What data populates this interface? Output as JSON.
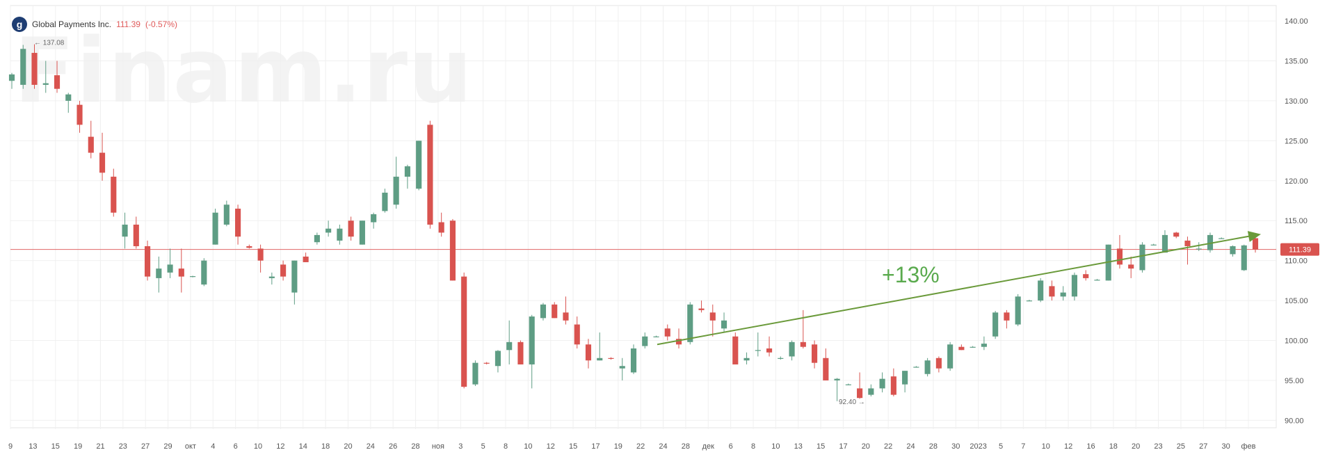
{
  "header": {
    "logo_letter": "g",
    "instrument": "Global Payments Inc.",
    "price": "111.39",
    "change": "(-0.57%)"
  },
  "watermark": "Finam.ru",
  "colors": {
    "up": "#5e9d84",
    "down": "#d9534f",
    "grid": "#f0f0f0",
    "price_line": "#e06666",
    "trend": "#6a9a3a",
    "trend_label": "#5aaa4e",
    "axis_text": "#555555"
  },
  "chart_data": {
    "type": "candlestick",
    "title": "Global Payments Inc.",
    "y_ticks": [
      90,
      95,
      100,
      105,
      110,
      115,
      120,
      125,
      130,
      135,
      140
    ],
    "y_tick_labels": [
      "90.00",
      "95.00",
      "100.00",
      "105.00",
      "110.00",
      "115.00",
      "120.00",
      "125.00",
      "130.00",
      "135.00",
      "140.00"
    ],
    "ylim": [
      88.9,
      141.4
    ],
    "x_tick_labels": [
      "9",
      "13",
      "15",
      "19",
      "21",
      "23",
      "27",
      "29",
      "окт",
      "4",
      "6",
      "10",
      "12",
      "14",
      "18",
      "20",
      "24",
      "26",
      "28",
      "ноя",
      "3",
      "5",
      "8",
      "10",
      "12",
      "15",
      "17",
      "19",
      "22",
      "24",
      "28",
      "дек",
      "6",
      "8",
      "10",
      "13",
      "15",
      "17",
      "20",
      "22",
      "24",
      "28",
      "30",
      "2023",
      "5",
      "7",
      "10",
      "12",
      "16",
      "18",
      "20",
      "23",
      "25",
      "27",
      "30",
      "фев"
    ],
    "last_price": 111.39,
    "last_price_label": "111.39",
    "max_annotation": {
      "label": "137.08",
      "value": 137.08
    },
    "min_annotation": {
      "label": "92.40",
      "value": 92.4
    },
    "trend": {
      "label": "+13%",
      "from": 99.5,
      "to": 113.3
    },
    "grid": true,
    "candles": [
      {
        "o": 132.5,
        "h": 133.5,
        "l": 131.5,
        "c": 133.3
      },
      {
        "o": 132.0,
        "h": 137.0,
        "l": 131.5,
        "c": 136.5
      },
      {
        "o": 136.0,
        "h": 137.08,
        "l": 131.5,
        "c": 132.0
      },
      {
        "o": 132.0,
        "h": 135.0,
        "l": 131.0,
        "c": 132.2
      },
      {
        "o": 133.2,
        "h": 135.0,
        "l": 131.0,
        "c": 131.5
      },
      {
        "o": 130.0,
        "h": 131.0,
        "l": 128.5,
        "c": 130.8
      },
      {
        "o": 129.5,
        "h": 130.0,
        "l": 126.0,
        "c": 127.0
      },
      {
        "o": 125.5,
        "h": 127.5,
        "l": 122.8,
        "c": 123.5
      },
      {
        "o": 123.5,
        "h": 126.0,
        "l": 120.0,
        "c": 121.0
      },
      {
        "o": 120.5,
        "h": 121.5,
        "l": 115.5,
        "c": 116.0
      },
      {
        "o": 113.0,
        "h": 116.0,
        "l": 111.5,
        "c": 114.5
      },
      {
        "o": 114.5,
        "h": 115.5,
        "l": 111.5,
        "c": 111.8
      },
      {
        "o": 111.8,
        "h": 112.5,
        "l": 107.5,
        "c": 108.0
      },
      {
        "o": 107.8,
        "h": 110.5,
        "l": 106.0,
        "c": 109.0
      },
      {
        "o": 108.5,
        "h": 111.5,
        "l": 107.8,
        "c": 109.5
      },
      {
        "o": 109.0,
        "h": 111.5,
        "l": 106.0,
        "c": 108.0
      },
      {
        "o": 108.0,
        "h": 108.1,
        "l": 107.9,
        "c": 108.05
      },
      {
        "o": 107.0,
        "h": 110.3,
        "l": 106.8,
        "c": 110.0
      },
      {
        "o": 112.0,
        "h": 116.5,
        "l": 112.0,
        "c": 116.0
      },
      {
        "o": 114.5,
        "h": 117.5,
        "l": 114.3,
        "c": 117.0
      },
      {
        "o": 116.5,
        "h": 117.0,
        "l": 112.0,
        "c": 113.0
      },
      {
        "o": 111.8,
        "h": 112.0,
        "l": 111.5,
        "c": 111.6
      },
      {
        "o": 111.5,
        "h": 112.0,
        "l": 108.5,
        "c": 110.0
      },
      {
        "o": 107.8,
        "h": 108.5,
        "l": 107.0,
        "c": 108.0
      },
      {
        "o": 109.5,
        "h": 110.0,
        "l": 107.5,
        "c": 108.0
      },
      {
        "o": 106.0,
        "h": 110.0,
        "l": 104.5,
        "c": 110.0
      },
      {
        "o": 110.5,
        "h": 111.0,
        "l": 109.8,
        "c": 109.8
      },
      {
        "o": 112.3,
        "h": 113.5,
        "l": 112.0,
        "c": 113.2
      },
      {
        "o": 113.5,
        "h": 115.0,
        "l": 113.0,
        "c": 114.0
      },
      {
        "o": 112.5,
        "h": 114.5,
        "l": 112.0,
        "c": 114.0
      },
      {
        "o": 115.0,
        "h": 115.5,
        "l": 112.5,
        "c": 113.0
      },
      {
        "o": 112.0,
        "h": 115.0,
        "l": 112.0,
        "c": 115.0
      },
      {
        "o": 114.8,
        "h": 116.0,
        "l": 114.0,
        "c": 115.8
      },
      {
        "o": 116.2,
        "h": 119.0,
        "l": 116.0,
        "c": 118.5
      },
      {
        "o": 117.0,
        "h": 123.0,
        "l": 116.5,
        "c": 120.5
      },
      {
        "o": 120.5,
        "h": 122.0,
        "l": 119.0,
        "c": 121.8
      },
      {
        "o": 119.0,
        "h": 125.0,
        "l": 118.8,
        "c": 125.0
      },
      {
        "o": 127.0,
        "h": 127.5,
        "l": 114.0,
        "c": 114.5
      },
      {
        "o": 114.8,
        "h": 116.0,
        "l": 113.0,
        "c": 113.5
      },
      {
        "o": 115.0,
        "h": 115.2,
        "l": 107.5,
        "c": 107.5
      },
      {
        "o": 108.0,
        "h": 108.5,
        "l": 94.0,
        "c": 94.2
      },
      {
        "o": 94.5,
        "h": 97.5,
        "l": 94.3,
        "c": 97.2
      },
      {
        "o": 97.2,
        "h": 97.3,
        "l": 97.0,
        "c": 97.1
      },
      {
        "o": 96.8,
        "h": 98.8,
        "l": 96.0,
        "c": 98.7
      },
      {
        "o": 98.8,
        "h": 102.5,
        "l": 97.0,
        "c": 99.8
      },
      {
        "o": 99.8,
        "h": 100.0,
        "l": 97.0,
        "c": 97.0
      },
      {
        "o": 97.0,
        "h": 103.2,
        "l": 94.0,
        "c": 103.0
      },
      {
        "o": 102.8,
        "h": 104.7,
        "l": 102.5,
        "c": 104.5
      },
      {
        "o": 104.5,
        "h": 104.8,
        "l": 102.8,
        "c": 102.8
      },
      {
        "o": 103.5,
        "h": 105.5,
        "l": 102.0,
        "c": 102.5
      },
      {
        "o": 102.0,
        "h": 103.0,
        "l": 99.0,
        "c": 99.5
      },
      {
        "o": 99.5,
        "h": 100.2,
        "l": 96.5,
        "c": 97.5
      },
      {
        "o": 97.5,
        "h": 101.0,
        "l": 97.5,
        "c": 97.8
      },
      {
        "o": 97.8,
        "h": 97.9,
        "l": 97.6,
        "c": 97.7
      },
      {
        "o": 96.5,
        "h": 97.8,
        "l": 95.0,
        "c": 96.8
      },
      {
        "o": 96.0,
        "h": 99.5,
        "l": 95.8,
        "c": 99.0
      },
      {
        "o": 99.3,
        "h": 101.0,
        "l": 99.0,
        "c": 100.5
      },
      {
        "o": 100.5,
        "h": 100.6,
        "l": 100.4,
        "c": 100.5
      },
      {
        "o": 101.5,
        "h": 102.0,
        "l": 100.0,
        "c": 100.5
      },
      {
        "o": 100.2,
        "h": 101.5,
        "l": 99.0,
        "c": 99.5
      },
      {
        "o": 99.8,
        "h": 104.8,
        "l": 99.5,
        "c": 104.5
      },
      {
        "o": 104.0,
        "h": 105.0,
        "l": 103.5,
        "c": 103.8
      },
      {
        "o": 103.5,
        "h": 104.5,
        "l": 100.5,
        "c": 102.5
      },
      {
        "o": 101.5,
        "h": 103.5,
        "l": 101.0,
        "c": 102.5
      },
      {
        "o": 100.5,
        "h": 101.0,
        "l": 97.0,
        "c": 97.0
      },
      {
        "o": 97.5,
        "h": 98.5,
        "l": 97.0,
        "c": 97.8
      },
      {
        "o": 98.8,
        "h": 101.0,
        "l": 98.0,
        "c": 98.8
      },
      {
        "o": 99.0,
        "h": 100.5,
        "l": 98.0,
        "c": 98.5
      },
      {
        "o": 97.8,
        "h": 98.0,
        "l": 97.6,
        "c": 97.8
      },
      {
        "o": 98.0,
        "h": 100.0,
        "l": 97.5,
        "c": 99.8
      },
      {
        "o": 99.8,
        "h": 103.8,
        "l": 99.0,
        "c": 99.2
      },
      {
        "o": 99.5,
        "h": 100.0,
        "l": 96.5,
        "c": 97.2
      },
      {
        "o": 97.8,
        "h": 99.0,
        "l": 95.0,
        "c": 95.0
      },
      {
        "o": 95.0,
        "h": 95.3,
        "l": 92.4,
        "c": 95.2
      },
      {
        "o": 94.5,
        "h": 94.6,
        "l": 94.4,
        "c": 94.5
      },
      {
        "o": 94.0,
        "h": 96.0,
        "l": 92.7,
        "c": 92.8
      },
      {
        "o": 93.2,
        "h": 94.5,
        "l": 93.0,
        "c": 94.0
      },
      {
        "o": 94.0,
        "h": 96.0,
        "l": 93.5,
        "c": 95.2
      },
      {
        "o": 95.5,
        "h": 96.5,
        "l": 93.0,
        "c": 93.2
      },
      {
        "o": 94.5,
        "h": 96.2,
        "l": 93.5,
        "c": 96.2
      },
      {
        "o": 96.7,
        "h": 96.8,
        "l": 96.6,
        "c": 96.7
      },
      {
        "o": 95.8,
        "h": 97.8,
        "l": 95.5,
        "c": 97.5
      },
      {
        "o": 97.8,
        "h": 98.0,
        "l": 96.0,
        "c": 96.5
      },
      {
        "o": 96.5,
        "h": 99.8,
        "l": 96.2,
        "c": 99.5
      },
      {
        "o": 99.2,
        "h": 99.5,
        "l": 98.8,
        "c": 98.8
      },
      {
        "o": 99.2,
        "h": 99.3,
        "l": 99.1,
        "c": 99.2
      },
      {
        "o": 99.2,
        "h": 100.5,
        "l": 98.8,
        "c": 99.6
      },
      {
        "o": 100.5,
        "h": 103.7,
        "l": 100.2,
        "c": 103.5
      },
      {
        "o": 103.5,
        "h": 103.8,
        "l": 101.5,
        "c": 102.5
      },
      {
        "o": 102.0,
        "h": 105.8,
        "l": 101.8,
        "c": 105.5
      },
      {
        "o": 105.0,
        "h": 105.1,
        "l": 104.9,
        "c": 105.0
      },
      {
        "o": 105.0,
        "h": 107.8,
        "l": 104.8,
        "c": 107.5
      },
      {
        "o": 106.8,
        "h": 107.5,
        "l": 105.0,
        "c": 105.5
      },
      {
        "o": 105.5,
        "h": 106.8,
        "l": 105.0,
        "c": 106.0
      },
      {
        "o": 105.5,
        "h": 108.5,
        "l": 105.0,
        "c": 108.2
      },
      {
        "o": 108.3,
        "h": 108.8,
        "l": 107.5,
        "c": 107.8
      },
      {
        "o": 107.6,
        "h": 107.7,
        "l": 107.5,
        "c": 107.6
      },
      {
        "o": 107.5,
        "h": 112.0,
        "l": 107.5,
        "c": 112.0
      },
      {
        "o": 111.5,
        "h": 113.2,
        "l": 109.0,
        "c": 109.5
      },
      {
        "o": 109.5,
        "h": 110.5,
        "l": 107.8,
        "c": 109.0
      },
      {
        "o": 108.8,
        "h": 112.3,
        "l": 108.5,
        "c": 112.0
      },
      {
        "o": 112.0,
        "h": 112.1,
        "l": 111.9,
        "c": 112.0
      },
      {
        "o": 111.0,
        "h": 113.8,
        "l": 111.0,
        "c": 113.2
      },
      {
        "o": 113.5,
        "h": 113.6,
        "l": 112.8,
        "c": 113.0
      },
      {
        "o": 112.5,
        "h": 113.0,
        "l": 109.5,
        "c": 111.8
      },
      {
        "o": 111.5,
        "h": 112.3,
        "l": 111.2,
        "c": 111.5
      },
      {
        "o": 111.3,
        "h": 113.5,
        "l": 111.0,
        "c": 113.2
      },
      {
        "o": 112.8,
        "h": 112.9,
        "l": 112.7,
        "c": 112.8
      },
      {
        "o": 110.8,
        "h": 111.9,
        "l": 110.5,
        "c": 111.8
      },
      {
        "o": 108.8,
        "h": 112.0,
        "l": 108.7,
        "c": 111.9
      },
      {
        "o": 112.8,
        "h": 113.0,
        "l": 111.0,
        "c": 111.39
      }
    ]
  }
}
